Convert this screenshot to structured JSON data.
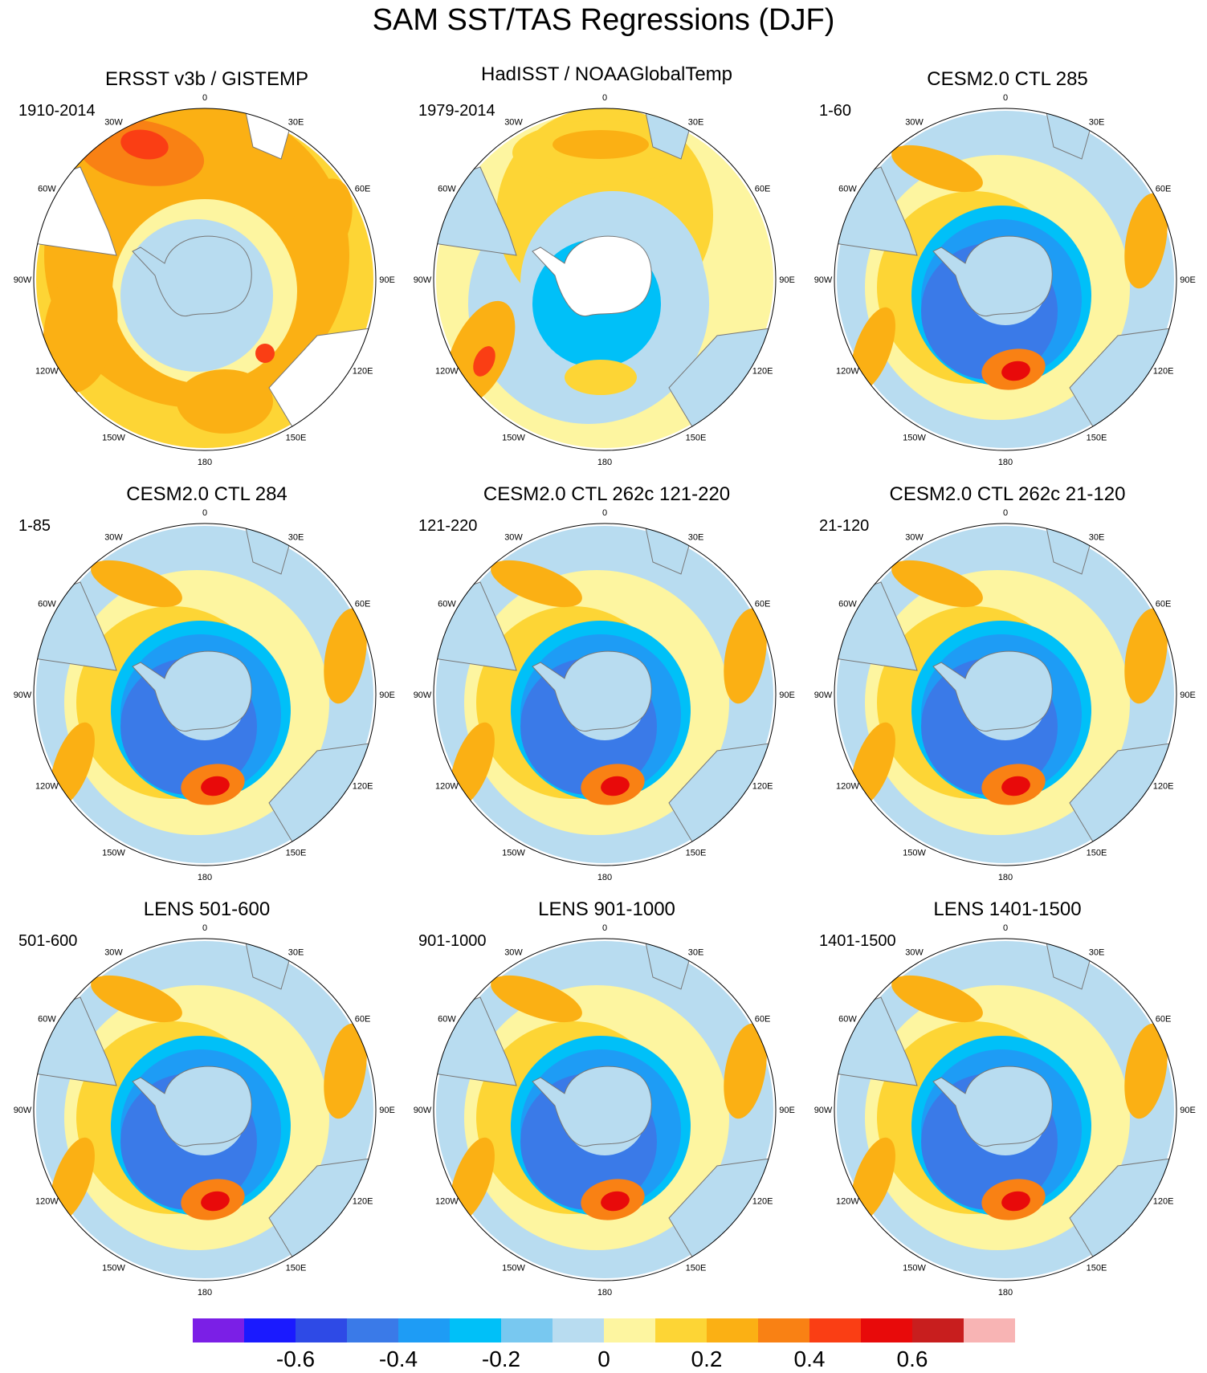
{
  "title": "SAM SST/TAS Regressions (DJF)",
  "panels": [
    {
      "title": "ERSST v3b / GISTEMP",
      "period": "1910-2014",
      "style": "obs1"
    },
    {
      "title": "HadISST / NOAAGlobalTemp",
      "period": "1979-2014",
      "style": "obs2"
    },
    {
      "title": "CESM2.0 CTL 285",
      "period": "1-60",
      "style": "model"
    },
    {
      "title": "CESM2.0 CTL 284",
      "period": "1-85",
      "style": "model"
    },
    {
      "title": "CESM2.0 CTL 262c 121-220",
      "period": "121-220",
      "style": "model"
    },
    {
      "title": "CESM2.0 CTL 262c 21-120",
      "period": "21-120",
      "style": "model"
    },
    {
      "title": "LENS 501-600",
      "period": "501-600",
      "style": "model"
    },
    {
      "title": "LENS 901-1000",
      "period": "901-1000",
      "style": "model"
    },
    {
      "title": "LENS 1401-1500",
      "period": "1401-1500",
      "style": "model"
    }
  ],
  "longitude_labels": [
    "0",
    "30E",
    "60E",
    "90E",
    "120E",
    "150E",
    "180",
    "150W",
    "120W",
    "90W",
    "60W",
    "30W"
  ],
  "colorbar": {
    "colors": [
      "#7b1fe6",
      "#1a1aff",
      "#2e4ae6",
      "#3a7ae8",
      "#1e9cf5",
      "#00c0f8",
      "#78c8f0",
      "#b8dcf0",
      "#fdf5a0",
      "#fdd535",
      "#fbb014",
      "#f98114",
      "#fa3e14",
      "#e80a0a",
      "#c81e1e",
      "#f8b4b4"
    ],
    "tick_labels": [
      "-0.6",
      "-0.4",
      "-0.2",
      "0",
      "0.2",
      "0.4",
      "0.6"
    ],
    "tick_values": [
      -0.6,
      -0.4,
      -0.2,
      0,
      0.2,
      0.4,
      0.6
    ]
  }
}
